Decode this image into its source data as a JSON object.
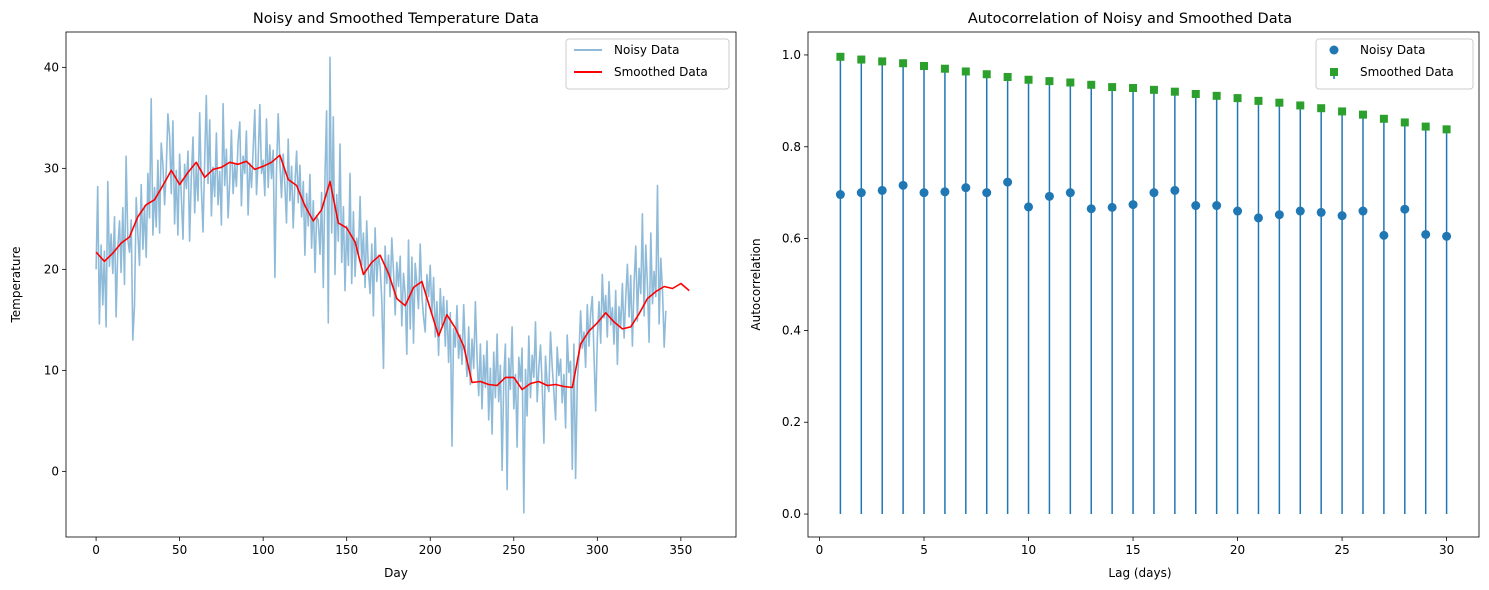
{
  "chart_data": [
    {
      "type": "line",
      "title": "Noisy and Smoothed Temperature Data",
      "xlabel": "Day",
      "ylabel": "Temperature",
      "xlim": [
        -18,
        383
      ],
      "ylim": [
        -6.5,
        43.5
      ],
      "xticks": [
        0,
        50,
        100,
        150,
        200,
        250,
        300,
        350
      ],
      "yticks": [
        0,
        10,
        20,
        30,
        40
      ],
      "grid": false,
      "legend_position": "upper right",
      "colors": {
        "noisy": "#1f77b4",
        "smoothed": "#ff0000"
      },
      "series": [
        {
          "name": "Noisy Data",
          "x_start": 0,
          "x_step": 1,
          "values": [
            20,
            28.2,
            14.6,
            22.4,
            16.5,
            21.8,
            14.3,
            28.7,
            20.3,
            23.5,
            19.6,
            25.2,
            15.3,
            22.1,
            24.8,
            19.7,
            26.1,
            18.5,
            31.2,
            23,
            21.7,
            24.9,
            13,
            16.4,
            27.1,
            23.7,
            20.4,
            28.4,
            22,
            26.3,
            21.2,
            29.5,
            25.1,
            36.9,
            23.4,
            28.1,
            24.2,
            30.8,
            23.6,
            32.5,
            30.4,
            26.4,
            29.7,
            35.4,
            33.2,
            27.5,
            34.7,
            24.5,
            29.8,
            23.4,
            31.4,
            27.3,
            23,
            30.4,
            28,
            31.7,
            22.8,
            29.1,
            33.1,
            25.6,
            30.3,
            26.8,
            35.5,
            28.2,
            23.7,
            30.8,
            37.2,
            28.5,
            34.8,
            25.3,
            30.1,
            27.2,
            33.5,
            26.4,
            29.7,
            24.4,
            36.4,
            28.3,
            31.9,
            25.1,
            28.6,
            33.8,
            27.5,
            30.4,
            28.2,
            32.6,
            34.6,
            26.3,
            31.2,
            29.5,
            33.7,
            25.4,
            30.5,
            28.1,
            31.7,
            35.8,
            27.4,
            30.6,
            36.3,
            29.5,
            30.8,
            27.3,
            34.9,
            28.1,
            32.3,
            29,
            31.8,
            19.2,
            29.8,
            35.4,
            30.5,
            27.1,
            31.4,
            28.3,
            24.6,
            32.9,
            26.8,
            30.2,
            24.1,
            28.5,
            31.7,
            26.6,
            30.3,
            25.2,
            28.7,
            21.4,
            27.5,
            24.3,
            29.4,
            22.1,
            26.8,
            19.7,
            25.3,
            24.8,
            21.5,
            27.6,
            18.2,
            29.3,
            35.7,
            14.7,
            41,
            23.6,
            35.1,
            19.5,
            27.4,
            22.8,
            32.4,
            20.7,
            26.2,
            17.9,
            24.3,
            20.4,
            29.5,
            18.6,
            25.7,
            19.3,
            23.1,
            21.5,
            27.2,
            20.4,
            23.6,
            18.2,
            24.8,
            19.9,
            17.6,
            22.5,
            15.4,
            24.1,
            18.8,
            21.4,
            20.3,
            16.9,
            10.2,
            22.3,
            18.6,
            21.4,
            17.3,
            23.1,
            19.8,
            15.5,
            20.7,
            18.3,
            21.3,
            14.4,
            19.6,
            17.5,
            11.6,
            22.9,
            14.1,
            21.2,
            12.7,
            20.6,
            18.5,
            16.1,
            22.5,
            17.4,
            15.2,
            13.8,
            19.5,
            17.3,
            20.4,
            15.6,
            19.2,
            13.3,
            16.8,
            11.5,
            18.1,
            14.5,
            17.3,
            12.4,
            16.9,
            10.8,
            15.7,
            2.5,
            14.1,
            12.3,
            16.4,
            11.2,
            13.5,
            10.6,
            16.5,
            12.1,
            9.4,
            14.3,
            8.6,
            13.1,
            10.2,
            16.8,
            11.4,
            7.5,
            12.6,
            6.2,
            11.5,
            8.3,
            12.9,
            5.1,
            10.2,
            3.7,
            11.8,
            7.3,
            13.6,
            6.9,
            10.5,
            0.1,
            9.3,
            12.6,
            -1.8,
            11.2,
            8.1,
            14.3,
            6.2,
            9.6,
            2.4,
            11.3,
            8.9,
            12.2,
            -4.1,
            10.1,
            5.5,
            13.4,
            7.3,
            11.5,
            9.3,
            14.8,
            6.9,
            10.2,
            12.5,
            8.4,
            2.8,
            11.4,
            8.6,
            7.9,
            13.8,
            10.4,
            7.8,
            5.1,
            12.3,
            9.5,
            11.1,
            6.8,
            9.6,
            4.3,
            13.5,
            9.8,
            10.9,
            0.2,
            12.6,
            -0.7,
            8.9,
            11.4,
            15.9,
            12.2,
            13.8,
            10.3,
            16.5,
            12.4,
            15.6,
            17.3,
            11.5,
            6,
            13.1,
            16.8,
            12.7,
            19.5,
            15.2,
            17.4,
            13.3,
            18.8,
            14.5,
            16.2,
            12.6,
            17.9,
            10.6,
            16.3,
            14.4,
            18.6,
            13.2,
            17.1,
            20.5,
            15.3,
            19.4,
            12.4,
            18.7,
            22.3,
            14.9,
            20.1,
            17.6,
            25.5,
            15.4,
            22.4,
            18.5,
            12.8,
            23.6,
            16.6,
            19.8,
            17.3,
            28.3,
            14.6,
            21.1,
            17.9,
            12.3,
            15.9
          ]
        },
        {
          "name": "Smoothed Data",
          "x_start": 0,
          "x_step": 5,
          "values": [
            21.7,
            20.8,
            21.6,
            22.6,
            23.2,
            25.2,
            26.4,
            26.9,
            28.3,
            29.8,
            28.4,
            29.6,
            30.6,
            29.1,
            29.9,
            30.1,
            30.6,
            30.4,
            30.7,
            29.9,
            30.2,
            30.6,
            31.3,
            28.9,
            28.3,
            26.3,
            24.8,
            25.9,
            28.7,
            24.6,
            24.1,
            22.7,
            19.5,
            20.7,
            21.4,
            19.6,
            17.1,
            16.4,
            18.2,
            18.8,
            16.1,
            13.4,
            15.5,
            14.2,
            12.4,
            8.8,
            8.9,
            8.6,
            8.5,
            9.3,
            9.3,
            8.1,
            8.7,
            8.9,
            8.5,
            8.6,
            8.4,
            8.3,
            12.6,
            13.9,
            14.7,
            15.7,
            14.8,
            14.1,
            14.3,
            15.6,
            17.1,
            17.8,
            18.3,
            18.1,
            18.6,
            17.9
          ]
        }
      ]
    },
    {
      "type": "stem",
      "title": "Autocorrelation of Noisy and Smoothed Data",
      "xlabel": "Lag (days)",
      "ylabel": "Autocorrelation",
      "xlim": [
        -0.55,
        31.55
      ],
      "ylim": [
        -0.05,
        1.05
      ],
      "xticks": [
        0,
        5,
        10,
        15,
        20,
        25,
        30
      ],
      "yticks": [
        "0.0",
        "0.2",
        "0.4",
        "0.6",
        "0.8",
        "1.0"
      ],
      "grid": false,
      "legend_position": "upper right",
      "colors": {
        "stem": "#1f77b4",
        "noisy": "#1f77b4",
        "smoothed": "#2ca02c"
      },
      "lags": [
        1,
        2,
        3,
        4,
        5,
        6,
        7,
        8,
        9,
        10,
        11,
        12,
        13,
        14,
        15,
        16,
        17,
        18,
        19,
        20,
        21,
        22,
        23,
        24,
        25,
        26,
        27,
        28,
        29,
        30
      ],
      "series": [
        {
          "name": "Noisy Data",
          "marker": "circle",
          "values": [
            0.696,
            0.7,
            0.705,
            0.716,
            0.7,
            0.702,
            0.711,
            0.7,
            0.723,
            0.669,
            0.692,
            0.7,
            0.665,
            0.668,
            0.674,
            0.7,
            0.705,
            0.672,
            0.672,
            0.66,
            0.645,
            0.652,
            0.66,
            0.657,
            0.65,
            0.66,
            0.607,
            0.664,
            0.609,
            0.605
          ]
        },
        {
          "name": "Smoothed Data",
          "marker": "square",
          "values": [
            0.996,
            0.99,
            0.986,
            0.982,
            0.976,
            0.97,
            0.964,
            0.958,
            0.952,
            0.946,
            0.943,
            0.94,
            0.935,
            0.93,
            0.928,
            0.924,
            0.92,
            0.915,
            0.911,
            0.906,
            0.9,
            0.896,
            0.89,
            0.884,
            0.877,
            0.87,
            0.861,
            0.853,
            0.844,
            0.838
          ]
        }
      ]
    }
  ]
}
